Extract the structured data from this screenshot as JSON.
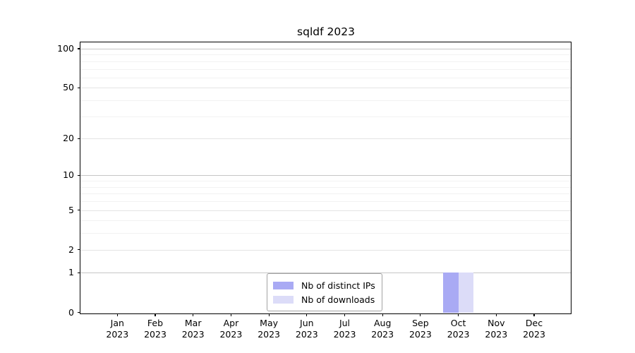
{
  "chart_data": {
    "type": "bar",
    "title": "sqldf 2023",
    "categories": [
      "Jan 2023",
      "Feb 2023",
      "Mar 2023",
      "Apr 2023",
      "May 2023",
      "Jun 2023",
      "Jul 2023",
      "Aug 2023",
      "Sep 2023",
      "Oct 2023",
      "Nov 2023",
      "Dec 2023"
    ],
    "x_tick_months": [
      "Jan",
      "Feb",
      "Mar",
      "Apr",
      "May",
      "Jun",
      "Jul",
      "Aug",
      "Sep",
      "Oct",
      "Nov",
      "Dec"
    ],
    "x_tick_year": "2023",
    "series": [
      {
        "name": "Nb of distinct IPs",
        "color": "#a9aaf4",
        "values": [
          0,
          0,
          0,
          0,
          0,
          0,
          0,
          0,
          0,
          1,
          0,
          0
        ]
      },
      {
        "name": "Nb of downloads",
        "color": "#dcdcf8",
        "values": [
          0,
          0,
          0,
          0,
          0,
          0,
          0,
          0,
          0,
          1,
          0,
          0
        ]
      }
    ],
    "yscale": "log1p",
    "ylim": [
      0,
      114
    ],
    "y_major_ticks": [
      0,
      1,
      2,
      5,
      10,
      20,
      50,
      100
    ],
    "y_decade_gridlines": [
      1,
      10,
      100
    ],
    "y_minor_gridlines": [
      3,
      4,
      6,
      7,
      8,
      9,
      30,
      40,
      60,
      70,
      80,
      90
    ],
    "grid": true,
    "legend_position": "inside-bottom-center"
  },
  "colors": {
    "background": "#ffffff",
    "axis": "#000000",
    "decade_grid": "#c6c6c6",
    "major_grid": "#e4e4e4",
    "minor_grid": "#f2f2f2",
    "legend_border": "#a3a3a3"
  }
}
